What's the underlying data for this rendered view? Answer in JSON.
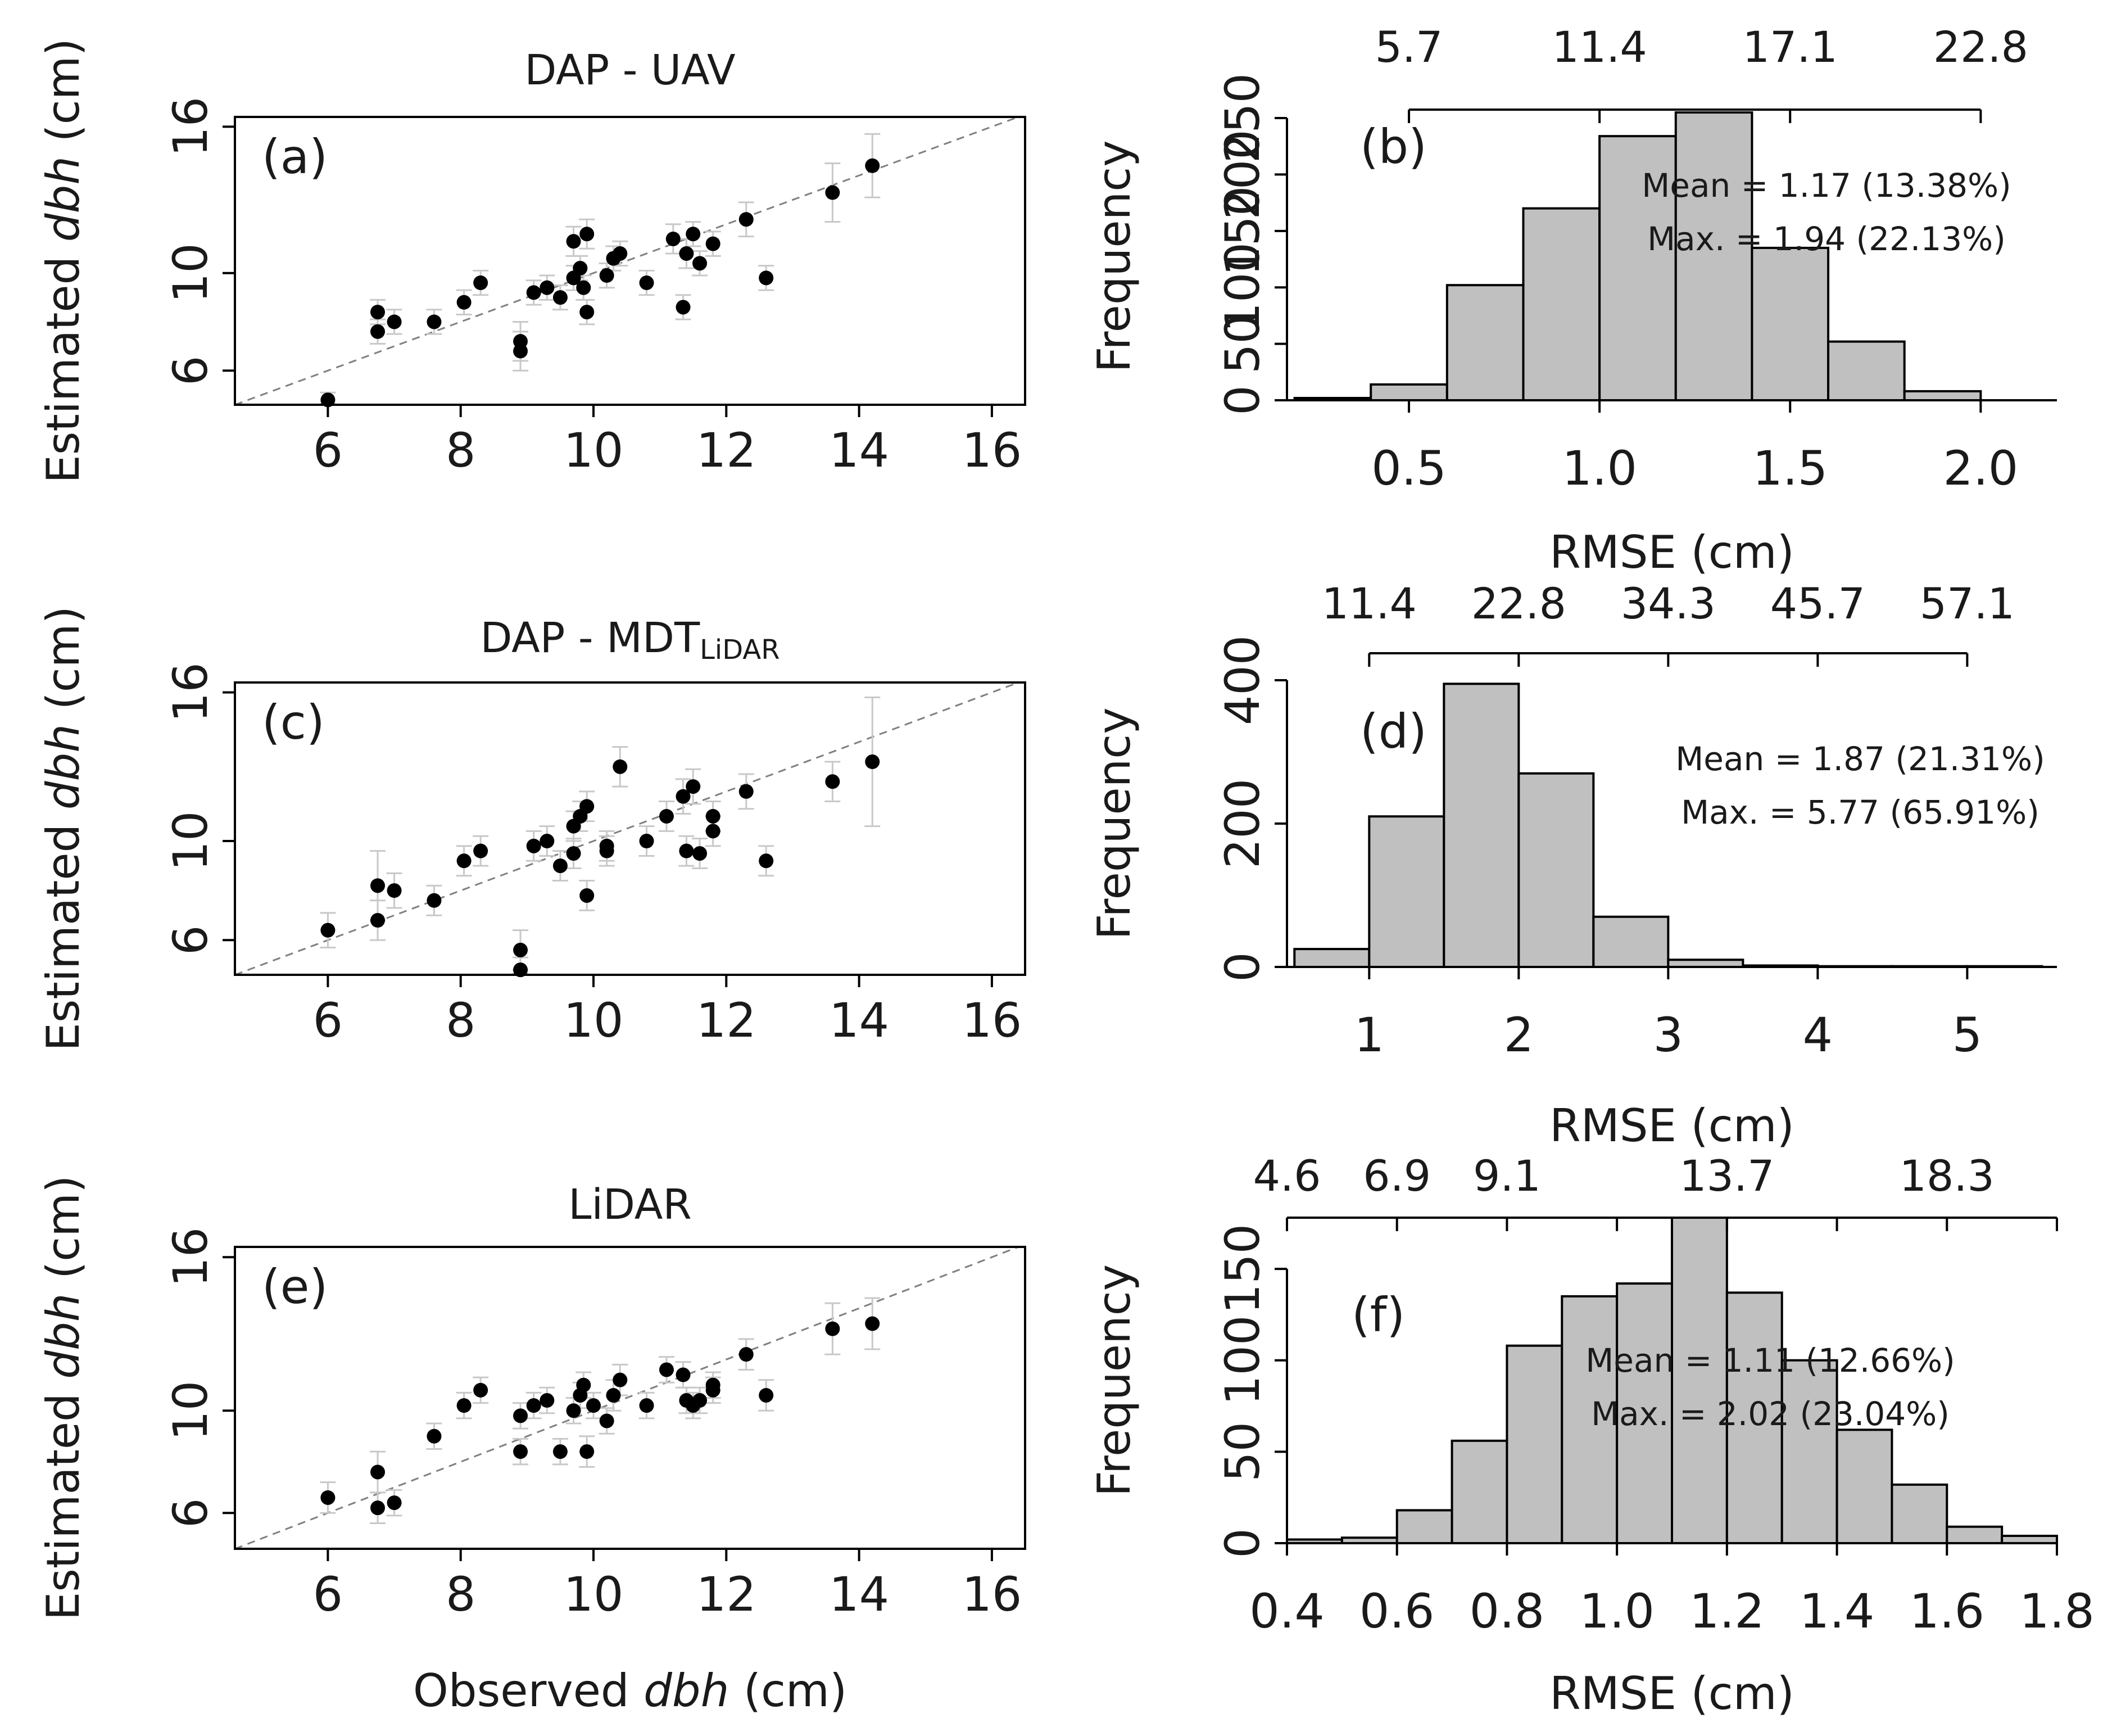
{
  "figure": {
    "y_axis_label": "Estimated",
    "y_axis_label_italic": "dbh",
    "y_axis_label_unit": "(cm)",
    "x_axis_label": "Observed",
    "x_axis_label_italic": "dbh",
    "x_axis_label_unit": "(cm)",
    "hist_x_label": "RMSE (cm)",
    "hist_y_label": "Frequency"
  },
  "chart_data": [
    {
      "id": "a",
      "type": "scatter",
      "tag": "(a)",
      "title": "DAP - UAV",
      "title_sub": "",
      "xlim": [
        4.6,
        16.5
      ],
      "ylim": [
        4.6,
        16.4
      ],
      "xticks": [
        6,
        8,
        10,
        12,
        14,
        16
      ],
      "yticks": [
        6,
        10,
        16
      ],
      "reference_line": "y = x",
      "points": [
        {
          "x": 6.0,
          "y": 4.8,
          "e": 0.3
        },
        {
          "x": 6.75,
          "y": 8.4,
          "e": 0.5
        },
        {
          "x": 6.75,
          "y": 7.6,
          "e": 0.5
        },
        {
          "x": 7.0,
          "y": 8.0,
          "e": 0.5
        },
        {
          "x": 7.6,
          "y": 8.0,
          "e": 0.5
        },
        {
          "x": 8.05,
          "y": 8.8,
          "e": 0.5
        },
        {
          "x": 8.3,
          "y": 9.6,
          "e": 0.5
        },
        {
          "x": 8.9,
          "y": 6.8,
          "e": 0.8
        },
        {
          "x": 8.9,
          "y": 7.2,
          "e": 0.8
        },
        {
          "x": 9.1,
          "y": 9.2,
          "e": 0.5
        },
        {
          "x": 9.3,
          "y": 9.4,
          "e": 0.5
        },
        {
          "x": 9.5,
          "y": 9.0,
          "e": 0.5
        },
        {
          "x": 9.7,
          "y": 9.8,
          "e": 0.5
        },
        {
          "x": 9.7,
          "y": 11.3,
          "e": 0.6
        },
        {
          "x": 9.8,
          "y": 10.2,
          "e": 0.5
        },
        {
          "x": 9.85,
          "y": 9.4,
          "e": 0.5
        },
        {
          "x": 9.9,
          "y": 11.6,
          "e": 0.6
        },
        {
          "x": 9.9,
          "y": 8.4,
          "e": 0.5
        },
        {
          "x": 10.2,
          "y": 9.9,
          "e": 0.5
        },
        {
          "x": 10.3,
          "y": 10.6,
          "e": 0.5
        },
        {
          "x": 10.4,
          "y": 10.8,
          "e": 0.5
        },
        {
          "x": 10.8,
          "y": 9.6,
          "e": 0.5
        },
        {
          "x": 11.2,
          "y": 11.4,
          "e": 0.6
        },
        {
          "x": 11.35,
          "y": 8.6,
          "e": 0.5
        },
        {
          "x": 11.4,
          "y": 10.8,
          "e": 0.6
        },
        {
          "x": 11.5,
          "y": 11.6,
          "e": 0.5
        },
        {
          "x": 11.6,
          "y": 10.4,
          "e": 0.5
        },
        {
          "x": 11.8,
          "y": 11.2,
          "e": 0.5
        },
        {
          "x": 12.3,
          "y": 12.2,
          "e": 0.7
        },
        {
          "x": 12.6,
          "y": 9.8,
          "e": 0.5
        },
        {
          "x": 13.6,
          "y": 13.3,
          "e": 1.2
        },
        {
          "x": 14.2,
          "y": 14.4,
          "e": 1.3
        }
      ]
    },
    {
      "id": "b",
      "type": "bar",
      "tag": "(b)",
      "bin_edges": [
        0.2,
        0.4,
        0.6,
        0.8,
        1.0,
        1.2,
        1.4,
        1.6,
        1.8,
        2.0
      ],
      "values": [
        2,
        14,
        102,
        170,
        234,
        255,
        135,
        52,
        8
      ],
      "xlim": [
        0.18,
        2.2
      ],
      "ylim": [
        0,
        255
      ],
      "xticks": [
        0.5,
        1.0,
        1.5,
        2.0
      ],
      "yticks": [
        0,
        50,
        100,
        150,
        200,
        250
      ],
      "top_axis": {
        "range": [
          0.5,
          2.0
        ],
        "ticks": [
          0.5,
          1.0,
          1.5,
          2.0
        ],
        "labels": [
          "5.7",
          "11.4",
          "17.1",
          "22.8"
        ]
      },
      "mean_label": "Mean = 1.17 (13.38%)",
      "max_label": "Max. = 1.94 (22.13%)"
    },
    {
      "id": "c",
      "type": "scatter",
      "tag": "(c)",
      "title": "DAP - MDT",
      "title_sub": "LiDAR",
      "xlim": [
        4.6,
        16.5
      ],
      "ylim": [
        4.6,
        16.4
      ],
      "xticks": [
        6,
        8,
        10,
        12,
        14,
        16
      ],
      "yticks": [
        6,
        10,
        16
      ],
      "reference_line": "y = x",
      "points": [
        {
          "x": 6.0,
          "y": 6.4,
          "e": 0.7
        },
        {
          "x": 6.75,
          "y": 6.8,
          "e": 0.8
        },
        {
          "x": 6.75,
          "y": 8.2,
          "e": 1.4
        },
        {
          "x": 7.0,
          "y": 8.0,
          "e": 0.7
        },
        {
          "x": 7.6,
          "y": 7.6,
          "e": 0.6
        },
        {
          "x": 8.05,
          "y": 9.2,
          "e": 0.6
        },
        {
          "x": 8.3,
          "y": 9.6,
          "e": 0.6
        },
        {
          "x": 8.9,
          "y": 5.6,
          "e": 0.8
        },
        {
          "x": 8.9,
          "y": 4.8,
          "e": 0.5
        },
        {
          "x": 9.1,
          "y": 9.8,
          "e": 0.6
        },
        {
          "x": 9.3,
          "y": 10.0,
          "e": 0.6
        },
        {
          "x": 9.5,
          "y": 9.0,
          "e": 0.6
        },
        {
          "x": 9.7,
          "y": 10.6,
          "e": 0.6
        },
        {
          "x": 9.7,
          "y": 9.5,
          "e": 0.6
        },
        {
          "x": 9.8,
          "y": 11.0,
          "e": 0.6
        },
        {
          "x": 9.9,
          "y": 11.4,
          "e": 0.6
        },
        {
          "x": 9.9,
          "y": 7.8,
          "e": 0.6
        },
        {
          "x": 10.2,
          "y": 9.6,
          "e": 0.6
        },
        {
          "x": 10.2,
          "y": 9.8,
          "e": 0.6
        },
        {
          "x": 10.4,
          "y": 13.0,
          "e": 0.8
        },
        {
          "x": 10.8,
          "y": 10.0,
          "e": 0.6
        },
        {
          "x": 11.1,
          "y": 11.0,
          "e": 0.6
        },
        {
          "x": 11.35,
          "y": 11.8,
          "e": 0.7
        },
        {
          "x": 11.4,
          "y": 9.6,
          "e": 0.6
        },
        {
          "x": 11.5,
          "y": 12.2,
          "e": 0.7
        },
        {
          "x": 11.6,
          "y": 9.5,
          "e": 0.6
        },
        {
          "x": 11.8,
          "y": 10.4,
          "e": 0.6
        },
        {
          "x": 11.8,
          "y": 11.0,
          "e": 0.6
        },
        {
          "x": 12.3,
          "y": 12.0,
          "e": 0.7
        },
        {
          "x": 12.6,
          "y": 9.2,
          "e": 0.6
        },
        {
          "x": 13.6,
          "y": 12.4,
          "e": 0.8
        },
        {
          "x": 14.2,
          "y": 13.2,
          "e": 2.6
        }
      ]
    },
    {
      "id": "d",
      "type": "bar",
      "tag": "(d)",
      "bin_edges": [
        0.5,
        1.0,
        1.5,
        2.0,
        2.5,
        3.0,
        3.5,
        4.0,
        4.5,
        5.0,
        5.5
      ],
      "values": [
        25,
        210,
        395,
        270,
        70,
        10,
        2,
        1,
        1,
        1
      ],
      "xlim": [
        0.45,
        5.6
      ],
      "ylim": [
        0,
        400
      ],
      "xticks": [
        1,
        2,
        3,
        4,
        5
      ],
      "yticks": [
        0,
        200,
        400
      ],
      "top_axis": {
        "range": [
          1.0,
          5.0
        ],
        "ticks": [
          1.0,
          2.0,
          3.0,
          4.0,
          5.0
        ],
        "labels": [
          "11.4",
          "22.8",
          "34.3",
          "45.7",
          "57.1"
        ]
      },
      "mean_label": "Mean = 1.87 (21.31%)",
      "max_label": "Max. = 5.77 (65.91%)"
    },
    {
      "id": "e",
      "type": "scatter",
      "tag": "(e)",
      "title": "LiDAR",
      "title_sub": "",
      "xlim": [
        4.6,
        16.5
      ],
      "ylim": [
        4.6,
        16.4
      ],
      "xticks": [
        6,
        8,
        10,
        12,
        14,
        16
      ],
      "yticks": [
        6,
        10,
        16
      ],
      "reference_line": "y = x",
      "points": [
        {
          "x": 6.0,
          "y": 6.6,
          "e": 0.6
        },
        {
          "x": 6.75,
          "y": 6.2,
          "e": 0.6
        },
        {
          "x": 6.75,
          "y": 7.6,
          "e": 0.8
        },
        {
          "x": 7.0,
          "y": 6.4,
          "e": 0.5
        },
        {
          "x": 7.6,
          "y": 9.0,
          "e": 0.5
        },
        {
          "x": 8.05,
          "y": 10.2,
          "e": 0.5
        },
        {
          "x": 8.3,
          "y": 10.8,
          "e": 0.5
        },
        {
          "x": 8.9,
          "y": 8.4,
          "e": 0.5
        },
        {
          "x": 8.9,
          "y": 9.8,
          "e": 0.5
        },
        {
          "x": 9.1,
          "y": 10.2,
          "e": 0.5
        },
        {
          "x": 9.3,
          "y": 10.4,
          "e": 0.5
        },
        {
          "x": 9.5,
          "y": 8.4,
          "e": 0.5
        },
        {
          "x": 9.7,
          "y": 10.0,
          "e": 0.5
        },
        {
          "x": 9.8,
          "y": 10.6,
          "e": 0.5
        },
        {
          "x": 9.85,
          "y": 11.0,
          "e": 0.5
        },
        {
          "x": 9.9,
          "y": 8.4,
          "e": 0.6
        },
        {
          "x": 10.0,
          "y": 10.2,
          "e": 0.5
        },
        {
          "x": 10.2,
          "y": 9.6,
          "e": 0.5
        },
        {
          "x": 10.3,
          "y": 10.6,
          "e": 0.6
        },
        {
          "x": 10.4,
          "y": 11.2,
          "e": 0.6
        },
        {
          "x": 10.8,
          "y": 10.2,
          "e": 0.5
        },
        {
          "x": 11.1,
          "y": 11.6,
          "e": 0.5
        },
        {
          "x": 11.35,
          "y": 11.4,
          "e": 0.5
        },
        {
          "x": 11.4,
          "y": 10.4,
          "e": 0.5
        },
        {
          "x": 11.5,
          "y": 10.2,
          "e": 0.5
        },
        {
          "x": 11.6,
          "y": 10.4,
          "e": 0.5
        },
        {
          "x": 11.8,
          "y": 10.8,
          "e": 0.5
        },
        {
          "x": 11.8,
          "y": 11.0,
          "e": 0.5
        },
        {
          "x": 12.3,
          "y": 12.2,
          "e": 0.6
        },
        {
          "x": 12.6,
          "y": 10.6,
          "e": 0.6
        },
        {
          "x": 13.6,
          "y": 13.2,
          "e": 1.0
        },
        {
          "x": 14.2,
          "y": 13.4,
          "e": 1.0
        }
      ]
    },
    {
      "id": "f",
      "type": "bar",
      "tag": "(f)",
      "bin_edges": [
        0.4,
        0.5,
        0.6,
        0.7,
        0.8,
        0.9,
        1.0,
        1.1,
        1.2,
        1.3,
        1.4,
        1.5,
        1.6,
        1.7,
        1.8
      ],
      "values": [
        2,
        3,
        18,
        56,
        108,
        135,
        142,
        178,
        137,
        100,
        62,
        32,
        9,
        4
      ],
      "xlim": [
        0.4,
        1.8
      ],
      "ylim": [
        0,
        178
      ],
      "xticks": [
        0.4,
        0.6,
        0.8,
        1.0,
        1.2,
        1.4,
        1.6,
        1.8
      ],
      "yticks": [
        0,
        50,
        100,
        150
      ],
      "top_axis": {
        "range": [
          0.4,
          1.8
        ],
        "ticks": [
          0.4,
          0.6,
          0.8,
          1.0,
          1.2,
          1.4,
          1.6,
          1.8
        ],
        "labels": [
          "4.6",
          "6.9",
          "9.1",
          "",
          "13.7",
          "",
          "18.3",
          ""
        ]
      },
      "mean_label": "Mean = 1.11 (12.66%)",
      "max_label": "Max. = 2.02 (23.04%)"
    }
  ]
}
